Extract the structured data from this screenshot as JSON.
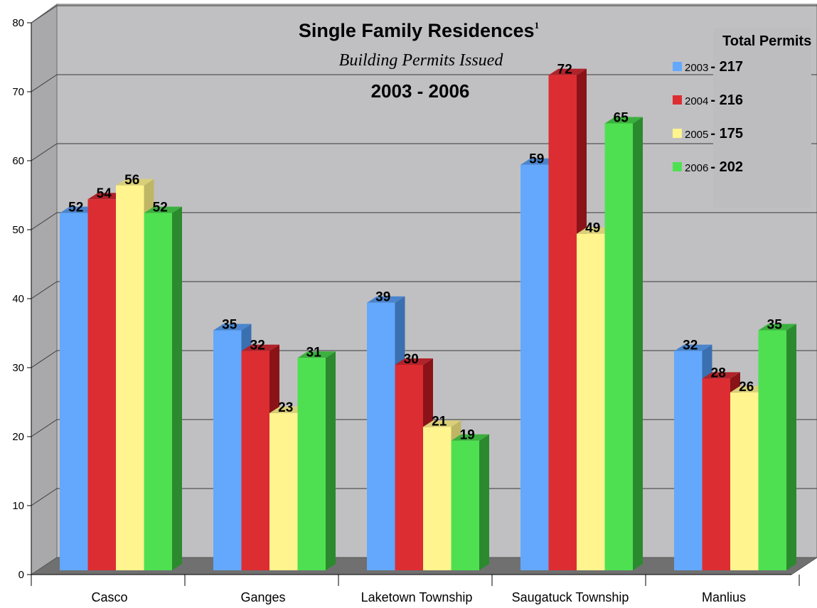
{
  "chart_data": {
    "type": "bar",
    "title": "Single Family Residences",
    "title_superscript": "1",
    "subtitle": "Building Permits Issued",
    "subtitle2": "2003 - 2006",
    "xlabel": "",
    "ylabel": "",
    "ylim": [
      0,
      80
    ],
    "yticks": [
      "0",
      "10",
      "20",
      "30",
      "40",
      "50",
      "60",
      "70",
      "80"
    ],
    "grid": true,
    "legend_position": "top-right",
    "legend_title": "Total Permits",
    "categories": [
      "Casco",
      "Ganges",
      "Laketown Township",
      "Saugatuck Township",
      "Manlius"
    ],
    "series": [
      {
        "name": "2003",
        "total": "217",
        "color": "#63a8fc",
        "side_color": "#3a6fb0",
        "top_color": "#4a84cc",
        "values": [
          52,
          35,
          39,
          59,
          32
        ]
      },
      {
        "name": "2004",
        "total": "216",
        "color": "#dc2d33",
        "side_color": "#8a1318",
        "top_color": "#b0232a",
        "values": [
          54,
          32,
          30,
          72,
          28
        ]
      },
      {
        "name": "2005",
        "total": "175",
        "color": "#fff48e",
        "side_color": "#bfb665",
        "top_color": "#d9cf78",
        "values": [
          56,
          23,
          21,
          49,
          26
        ]
      },
      {
        "name": "2006",
        "total": "202",
        "color": "#4fe052",
        "side_color": "#2b8a2e",
        "top_color": "#3bb03e",
        "values": [
          52,
          31,
          19,
          65,
          35
        ]
      }
    ]
  }
}
